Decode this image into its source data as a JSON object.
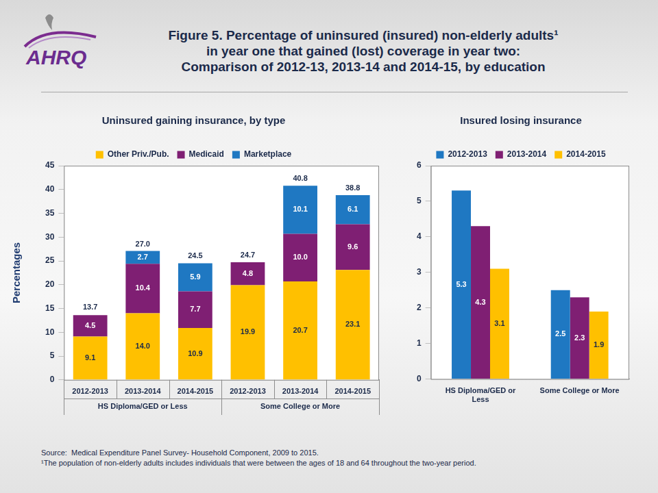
{
  "title": [
    "Figure 5. Percentage of uninsured (insured) non-elderly adults¹",
    "in year one that gained (lost) coverage in year two:",
    "Comparison of 2012-13, 2013-14 and 2014-15, by education"
  ],
  "logo": "AHRQ",
  "source": "Source:  Medical Expenditure Panel Survey- Household Component, 2009 to 2015.",
  "footnote": "¹The population of non-elderly adults includes individuals that were between the ages of 18 and 64 throughout the two-year period.",
  "chart_data": [
    {
      "type": "bar",
      "title": "Uninsured gaining insurance, by type",
      "y_label": "Percentages",
      "categories": [
        "2012-2013",
        "2013-2014",
        "2014-2015",
        "2012-2013",
        "2013-2014",
        "2014-2015"
      ],
      "category_groups": [
        {
          "name": "HS Diploma/GED or Less",
          "count": 3
        },
        {
          "name": "Some College or More",
          "count": 3
        }
      ],
      "stacked": true,
      "series": [
        {
          "name": "Other Priv./Pub.",
          "color": "#FFC000",
          "values": [
            9.1,
            14.0,
            10.9,
            19.9,
            20.7,
            23.1
          ],
          "value_labels": [
            "9.1",
            "14.0",
            "10.9",
            "19.9",
            "20.7",
            "23.1"
          ]
        },
        {
          "name": "Medicaid",
          "color": "#7F1F73",
          "values": [
            4.5,
            10.4,
            7.7,
            4.8,
            10.0,
            9.6
          ],
          "value_labels": [
            "4.5",
            "10.4",
            "7.7",
            "4.8",
            "10.0",
            "9.6"
          ]
        },
        {
          "name": "Marketplace",
          "color": "#1F78C2",
          "values": [
            null,
            2.7,
            5.9,
            null,
            10.1,
            6.1
          ],
          "value_labels": [
            null,
            "2.7",
            "5.9",
            null,
            "10.1",
            "6.1"
          ]
        }
      ],
      "totals": [
        13.7,
        27.0,
        24.5,
        24.7,
        40.8,
        38.8
      ],
      "total_labels": [
        "13.7",
        "27.0",
        "24.5",
        "24.7",
        "40.8",
        "38.8"
      ],
      "ylim": [
        0,
        45
      ],
      "yticks": [
        0,
        5,
        10,
        15,
        20,
        25,
        30,
        35,
        40,
        45
      ],
      "grid": true,
      "legend": "top",
      "data_labels": true
    },
    {
      "type": "bar",
      "title": "Insured losing insurance",
      "categories": [
        "HS Diploma/GED or Less",
        "Some College or More"
      ],
      "series": [
        {
          "name": "2012-2013",
          "color": "#1F78C2",
          "values": [
            5.3,
            2.5
          ]
        },
        {
          "name": "2013-2014",
          "color": "#7F1F73",
          "values": [
            4.3,
            2.3
          ]
        },
        {
          "name": "2014-2015",
          "color": "#FFC000",
          "values": [
            3.1,
            1.9
          ]
        }
      ],
      "ylim": [
        0,
        6
      ],
      "yticks": [
        0,
        1,
        2,
        3,
        4,
        5,
        6
      ],
      "grid": true,
      "legend": "top",
      "data_labels": true
    }
  ]
}
